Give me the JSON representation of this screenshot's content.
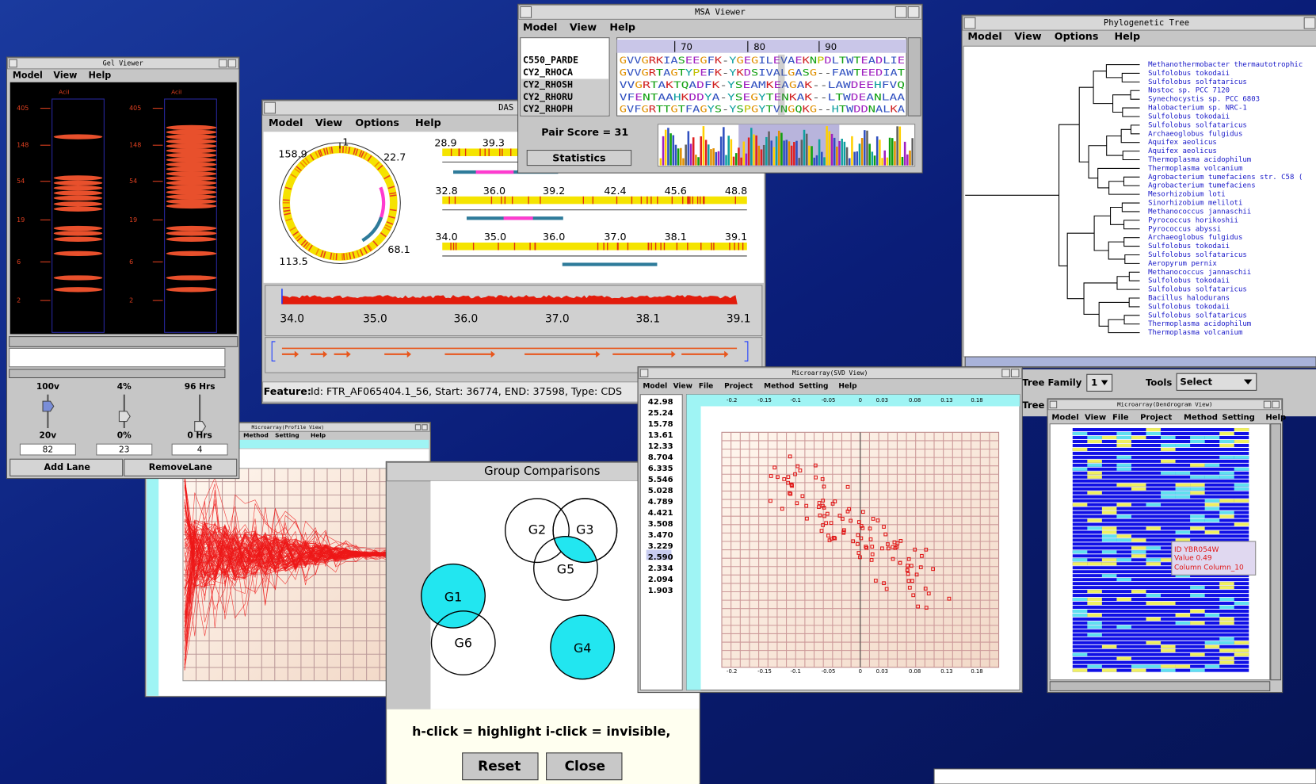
{
  "gel_viewer": {
    "title": "Gel Viewer",
    "menu": [
      "Model",
      "View",
      "Help"
    ],
    "lanes": [
      "AciI",
      "AciI"
    ],
    "sizes": [
      "405",
      "148",
      "54",
      "19",
      "6",
      "2"
    ],
    "controls": {
      "headers": [
        "100v",
        "4%",
        "96 Hrs"
      ],
      "mins": [
        "20v",
        "0%",
        "0 Hrs"
      ],
      "fields": [
        "82",
        "23",
        "4"
      ]
    },
    "buttons": [
      "Add Lane",
      "RemoveLane"
    ]
  },
  "das_viewer": {
    "title": "DAS Vi",
    "menu": [
      "Model",
      "View",
      "Options",
      "Help"
    ],
    "circle_labels": [
      "1",
      "22.7",
      "68.1",
      "113.5",
      "158.9"
    ],
    "tracks": [
      [
        "28.9",
        "39.3"
      ],
      [
        "32.8",
        "36.0",
        "39.2",
        "42.4",
        "45.6",
        "48.8"
      ],
      [
        "34.0",
        "35.0",
        "36.0",
        "37.0",
        "38.1",
        "39.1"
      ]
    ],
    "axis": [
      "34.0",
      "35.0",
      "36.0",
      "37.0",
      "38.1",
      "39.1"
    ],
    "feature_label": "Feature:",
    "feature": "Id: FTR_AF065404.1_56, Start: 36774, END: 37598, Type: CDS"
  },
  "msa_viewer": {
    "title": "MSA Viewer",
    "menu": [
      "Model",
      "View",
      "Help"
    ],
    "ruler": [
      "70",
      "80",
      "90"
    ],
    "names": [
      "C550_PARDE",
      "CY2_RHOCA",
      "CY2_RHOSH",
      "CY2_RHORU",
      "CY2_RHOPH"
    ],
    "sequences": [
      "GVVGRKIASEEGFK-YGEGILEVAEKNPDLTWTEADLIE",
      "GVVGRTAGTYPEFK-YKDSIVALGASG--FAWTEEDIAT",
      " VVGRTAKTQADFK-YSEAMKEAGAK--LAWDEEHFVQ",
      " VFENTAAHKDDYA-YSEGYTENKAK--LTWDEANLAA",
      "GVFGRTTGTFAGYS-YSPGYTVNGQKG--HTWDDNALKA"
    ],
    "pair_score": "Pair Score = 31",
    "button": "Statistics"
  },
  "phylo_tree": {
    "title": "Phylogenetic Tree",
    "menu": [
      "Model",
      "View",
      "Options",
      "Help"
    ],
    "leaves": [
      "Methanothermobacter thermautotrophic",
      "Sulfolobus tokodaii",
      "Sulfolobus solfataricus",
      "Nostoc sp. PCC 7120",
      "Synechocystis sp. PCC 6803",
      "Halobacterium sp. NRC-1",
      "Sulfolobus tokodaii",
      "Sulfolobus solfataricus",
      "Archaeoglobus fulgidus",
      "Aquifex aeolicus",
      "Aquifex aeolicus",
      "Thermoplasma acidophilum",
      "Thermoplasma volcanium",
      "Agrobacterium tumefaciens str. C58 (",
      "Agrobacterium tumefaciens",
      "Mesorhizobium loti",
      "Sinorhizobium meliloti",
      "Methanococcus jannaschii",
      "Pyrococcus horikoshii",
      "Pyrococcus abyssi",
      "Archaeoglobus fulgidus",
      "Sulfolobus tokodaii",
      "Sulfolobus solfataricus",
      "Aeropyrum pernix",
      "Methanococcus jannaschii",
      "Sulfolobus tokodaii",
      "Sulfolobus solfataricus",
      "Bacillus halodurans",
      "Sulfolobus tokodaii",
      "Sulfolobus solfataricus",
      "Thermoplasma acidophilum",
      "Thermoplasma volcanium"
    ],
    "tree_family_label": "Tree Family",
    "tree_family": "1",
    "tools_label": "Tools",
    "tools": "Select",
    "tree_label": "Tree I"
  },
  "profile_view": {
    "title": "Microarray(Profile View)",
    "menu": [
      "Method",
      "Setting",
      "Help"
    ]
  },
  "group_comparisons": {
    "title": "Group Comparisons",
    "groups": [
      "G1",
      "G2",
      "G3",
      "G4",
      "G5",
      "G6"
    ],
    "hint": "h-click = highlight i-click = invisible,",
    "buttons": [
      "Reset",
      "Close"
    ]
  },
  "svd_view": {
    "title": "Microarray(SVD View)",
    "menu": [
      "Model",
      "View",
      "File",
      "Project",
      "Method",
      "Setting",
      "Help"
    ],
    "values": [
      "42.98",
      "25.24",
      "15.78",
      "13.61",
      "12.33",
      "8.704",
      "6.335",
      "5.546",
      "5.028",
      "4.789",
      "4.421",
      "3.508",
      "3.470",
      "3.229",
      "2.590",
      "2.334",
      "2.094",
      "1.903"
    ],
    "xticks": [
      "-0.2",
      "-0.15",
      "-0.1",
      "-0.05",
      "0",
      "0.03",
      "0.08",
      "0.13",
      "0.18"
    ]
  },
  "dendrogram_view": {
    "title": "Microarray(Dendrogram View)",
    "menu": [
      "Model",
      "View",
      "File",
      "Project",
      "Method",
      "Setting",
      "Help"
    ],
    "tooltip": [
      "ID  YBR054W",
      "Value  0.49",
      "Column  Column_10"
    ]
  }
}
